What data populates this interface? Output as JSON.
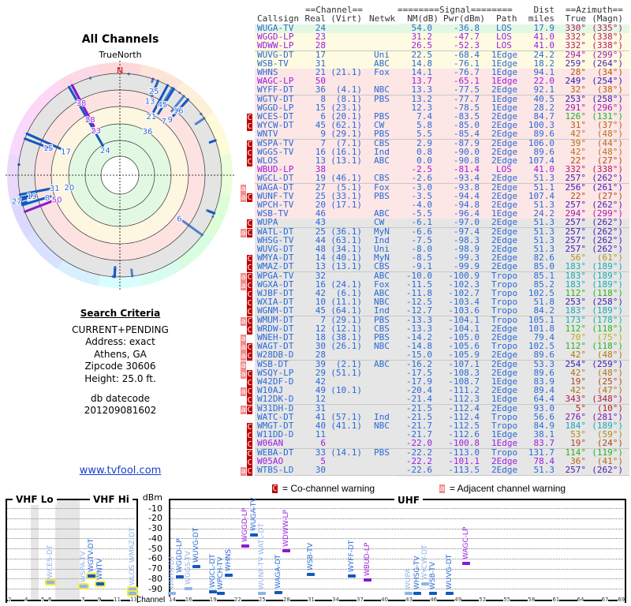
{
  "left": {
    "title": "All Channels",
    "true_north": "TrueNorth",
    "north_label": "N",
    "search_criteria": {
      "heading": "Search Criteria",
      "lines": [
        "CURRENT+PENDING",
        "Address: exact",
        "Athens, GA",
        "Zipcode 30606",
        "Height: 25.0 ft."
      ],
      "db_label": "db datecode",
      "db_value": "201209081602"
    },
    "link": "www.tvfool.com"
  },
  "table": {
    "group_headers": {
      "channel": "==Channel==",
      "signal": "========Signal========",
      "dist": "Dist",
      "azimuth": "==Azimuth=="
    },
    "headers": {
      "call": "Callsign",
      "real": "Real",
      "virt": "(Virt)",
      "net": "Netwk",
      "nm": "NM(dB)",
      "pwr": "Pwr(dBm)",
      "path": "Path",
      "dist": "miles",
      "az": "True",
      "magn": "(Magn)"
    },
    "band_colors": {
      "green": "#e2f8e2",
      "yellow": "#fffbe2",
      "pink": "#fde6e6",
      "gray": "#e6e6e6"
    },
    "text_colors": {
      "normal": "#2a6ad8",
      "lp": "#9a1ee0"
    },
    "rows": [
      {
        "f": "",
        "call": "WUGA-TV",
        "real": "24",
        "virt": "",
        "net": "",
        "nm": "54.0",
        "pwr": "-36.8",
        "path": "LOS",
        "dist": "17.9",
        "az": "330°",
        "magn": "(335°)",
        "band": "green"
      },
      {
        "f": "",
        "call": "WGGD-LP",
        "real": "23",
        "virt": "",
        "net": "",
        "nm": "31.2",
        "pwr": "-47.7",
        "path": "LOS",
        "dist": "41.0",
        "az": "332°",
        "magn": "(338°)",
        "band": "yellow",
        "lp": true
      },
      {
        "f": "",
        "call": "WDWW-LP",
        "real": "28",
        "virt": "",
        "net": "",
        "nm": "26.5",
        "pwr": "-52.3",
        "path": "LOS",
        "dist": "41.0",
        "az": "332°",
        "magn": "(338°)",
        "band": "yellow",
        "lp": true
      },
      {
        "f": "",
        "call": "WUVG-DT",
        "real": "17",
        "virt": "",
        "net": "Uni",
        "nm": "22.5",
        "pwr": "-68.4",
        "path": "1Edge",
        "dist": "24.2",
        "az": "294°",
        "magn": "(299°)",
        "band": "yellow"
      },
      {
        "f": "",
        "call": "WSB-TV",
        "real": "31",
        "virt": "",
        "net": "ABC",
        "nm": "14.8",
        "pwr": "-76.1",
        "path": "1Edge",
        "dist": "18.2",
        "az": "259°",
        "magn": "(264°)",
        "band": "yellow"
      },
      {
        "f": "",
        "call": "WHNS",
        "real": "21",
        "virt": "(21.1)",
        "net": "Fox",
        "nm": "14.1",
        "pwr": "-76.7",
        "path": "1Edge",
        "dist": "94.1",
        "az": "28°",
        "magn": "(34°)",
        "band": "pink"
      },
      {
        "f": "",
        "call": "WAGC-LP",
        "real": "50",
        "virt": "",
        "net": "",
        "nm": "13.7",
        "pwr": "-65.1",
        "path": "1Edge",
        "dist": "22.0",
        "az": "249°",
        "magn": "(254°)",
        "band": "pink",
        "lp": true
      },
      {
        "f": "",
        "call": "WYFF-DT",
        "real": "36",
        "virt": "(4.1)",
        "net": "NBC",
        "nm": "13.3",
        "pwr": "-77.5",
        "path": "2Edge",
        "dist": "92.1",
        "az": "32°",
        "magn": "(38°)",
        "band": "pink"
      },
      {
        "f": "",
        "call": "WGTV-DT",
        "real": "8",
        "virt": "(8.1)",
        "net": "PBS",
        "nm": "13.2",
        "pwr": "-77.7",
        "path": "1Edge",
        "dist": "40.5",
        "az": "253°",
        "magn": "(258°)",
        "band": "pink"
      },
      {
        "f": "",
        "call": "WGGD-LP",
        "real": "15",
        "virt": "(23.1)",
        "net": "",
        "nm": "12.3",
        "pwr": "-78.5",
        "path": "1Edge",
        "dist": "28.2",
        "az": "291°",
        "magn": "(296°)",
        "band": "pink"
      },
      {
        "f": "C",
        "call": "WCES-DT",
        "real": "6",
        "virt": "(20.1)",
        "net": "PBS",
        "nm": "7.4",
        "pwr": "-83.5",
        "path": "2Edge",
        "dist": "84.7",
        "az": "126°",
        "magn": "(131°)",
        "band": "pink"
      },
      {
        "f": "C",
        "call": "WYCW-DT",
        "real": "45",
        "virt": "(62.1)",
        "net": "CW",
        "nm": "5.8",
        "pwr": "-85.0",
        "path": "2Edge",
        "dist": "100.3",
        "az": "31°",
        "magn": "(37°)",
        "band": "pink"
      },
      {
        "f": "",
        "call": "WNTV",
        "real": "9",
        "virt": "(29.1)",
        "net": "PBS",
        "nm": "5.5",
        "pwr": "-85.4",
        "path": "2Edge",
        "dist": "89.6",
        "az": "42°",
        "magn": "(48°)",
        "band": "pink"
      },
      {
        "f": "C",
        "call": "WSPA-TV",
        "real": "7",
        "virt": "(7.1)",
        "net": "CBS",
        "nm": "2.9",
        "pwr": "-87.9",
        "path": "2Edge",
        "dist": "106.0",
        "az": "39°",
        "magn": "(44°)",
        "band": "pink"
      },
      {
        "f": "C",
        "call": "WGGS-TV",
        "real": "16",
        "virt": "(16.1)",
        "net": "Ind",
        "nm": "0.8",
        "pwr": "-90.0",
        "path": "2Edge",
        "dist": "89.6",
        "az": "42°",
        "magn": "(48°)",
        "band": "pink"
      },
      {
        "f": "C",
        "call": "WLOS",
        "real": "13",
        "virt": "(13.1)",
        "net": "ABC",
        "nm": "0.0",
        "pwr": "-90.8",
        "path": "2Edge",
        "dist": "107.4",
        "az": "22°",
        "magn": "(27°)",
        "band": "pink"
      },
      {
        "f": "",
        "call": "WBUD-LP",
        "real": "38",
        "virt": "",
        "net": "",
        "nm": "-2.5",
        "pwr": "-81.4",
        "path": "LOS",
        "dist": "41.0",
        "az": "332°",
        "magn": "(338°)",
        "band": "pink",
        "lp": true
      },
      {
        "f": "",
        "call": "WGCL-DT",
        "real": "19",
        "virt": "(46.1)",
        "net": "CBS",
        "nm": "-2.6",
        "pwr": "-93.4",
        "path": "2Edge",
        "dist": "51.3",
        "az": "257°",
        "magn": "(262°)",
        "band": "pink"
      },
      {
        "f": "a",
        "call": "WAGA-DT",
        "real": "27",
        "virt": "(5.1)",
        "net": "Fox",
        "nm": "-3.0",
        "pwr": "-93.8",
        "path": "2Edge",
        "dist": "51.1",
        "az": "256°",
        "magn": "(261°)",
        "band": "pink"
      },
      {
        "f": "aC",
        "call": "WUNF-TV",
        "real": "25",
        "virt": "(33.1)",
        "net": "PBS",
        "nm": "-3.5",
        "pwr": "-94.4",
        "path": "2Edge",
        "dist": "107.4",
        "az": "22°",
        "magn": "(27°)",
        "band": "pink"
      },
      {
        "f": "",
        "call": "WPCH-TV",
        "real": "20",
        "virt": "(17.1)",
        "net": "",
        "nm": "-4.0",
        "pwr": "-94.8",
        "path": "2Edge",
        "dist": "51.3",
        "az": "257°",
        "magn": "(262°)",
        "band": "pink"
      },
      {
        "f": "",
        "call": "WSB-TV",
        "real": "46",
        "virt": "",
        "net": "ABC",
        "nm": "-5.5",
        "pwr": "-96.4",
        "path": "1Edge",
        "dist": "24.2",
        "az": "294°",
        "magn": "(299°)",
        "band": "pink"
      },
      {
        "f": "C",
        "call": "WUPA",
        "real": "43",
        "virt": "",
        "net": "CW",
        "nm": "-6.1",
        "pwr": "-97.0",
        "path": "2Edge",
        "dist": "51.3",
        "az": "257°",
        "magn": "(262°)",
        "band": "gray"
      },
      {
        "f": "aC",
        "call": "WATL-DT",
        "real": "25",
        "virt": "(36.1)",
        "net": "MyN",
        "nm": "-6.6",
        "pwr": "-97.4",
        "path": "2Edge",
        "dist": "51.3",
        "az": "257°",
        "magn": "(262°)",
        "band": "gray"
      },
      {
        "f": "",
        "call": "WHSG-TV",
        "real": "44",
        "virt": "(63.1)",
        "net": "Ind",
        "nm": "-7.5",
        "pwr": "-98.3",
        "path": "2Edge",
        "dist": "51.3",
        "az": "257°",
        "magn": "(262°)",
        "band": "gray"
      },
      {
        "f": "",
        "call": "WUVG-DT",
        "real": "48",
        "virt": "(34.1)",
        "net": "Uni",
        "nm": "-8.0",
        "pwr": "-98.9",
        "path": "2Edge",
        "dist": "51.3",
        "az": "257°",
        "magn": "(262°)",
        "band": "gray"
      },
      {
        "f": "C",
        "call": "WMYA-DT",
        "real": "14",
        "virt": "(40.1)",
        "net": "MyN",
        "nm": "-8.5",
        "pwr": "-99.3",
        "path": "2Edge",
        "dist": "82.6",
        "az": "56°",
        "magn": "(61°)",
        "band": "gray"
      },
      {
        "f": "C",
        "call": "WMAZ-DT",
        "real": "13",
        "virt": "(13.1)",
        "net": "CBS",
        "nm": "-9.1",
        "pwr": "-99.9",
        "path": "2Edge",
        "dist": "85.0",
        "az": "183°",
        "magn": "(189°)",
        "band": "gray"
      },
      {
        "f": "aC",
        "call": "WPGA-TV",
        "real": "32",
        "virt": "",
        "net": "ABC",
        "nm": "-10.0",
        "pwr": "-100.9",
        "path": "Tropo",
        "dist": "85.1",
        "az": "183°",
        "magn": "(189°)",
        "band": "gray"
      },
      {
        "f": "aC",
        "call": "WGXA-DT",
        "real": "16",
        "virt": "(24.1)",
        "net": "Fox",
        "nm": "-11.5",
        "pwr": "-102.3",
        "path": "Tropo",
        "dist": "85.2",
        "az": "183°",
        "magn": "(189°)",
        "band": "gray"
      },
      {
        "f": "C",
        "call": "WJBF-DT",
        "real": "42",
        "virt": "(6.1)",
        "net": "ABC",
        "nm": "-11.8",
        "pwr": "-102.7",
        "path": "Tropo",
        "dist": "102.5",
        "az": "112°",
        "magn": "(118°)",
        "band": "gray"
      },
      {
        "f": "C",
        "call": "WXIA-DT",
        "real": "10",
        "virt": "(11.1)",
        "net": "NBC",
        "nm": "-12.5",
        "pwr": "-103.4",
        "path": "Tropo",
        "dist": "51.8",
        "az": "253°",
        "magn": "(258°)",
        "band": "gray"
      },
      {
        "f": "C",
        "call": "WGNM-DT",
        "real": "45",
        "virt": "(64.1)",
        "net": "Ind",
        "nm": "-12.7",
        "pwr": "-103.6",
        "path": "Tropo",
        "dist": "84.2",
        "az": "183°",
        "magn": "(189°)",
        "band": "gray"
      },
      {
        "f": "aC",
        "call": "WMUM-DT",
        "real": "7",
        "virt": "(29.1)",
        "net": "PBS",
        "nm": "-13.3",
        "pwr": "-104.1",
        "path": "Tropo",
        "dist": "105.1",
        "az": "173°",
        "magn": "(178°)",
        "band": "gray"
      },
      {
        "f": "C",
        "call": "WRDW-DT",
        "real": "12",
        "virt": "(12.1)",
        "net": "CBS",
        "nm": "-13.3",
        "pwr": "-104.1",
        "path": "2Edge",
        "dist": "101.8",
        "az": "112°",
        "magn": "(118°)",
        "band": "gray"
      },
      {
        "f": "a",
        "call": "WNEH-DT",
        "real": "18",
        "virt": "(38.1)",
        "net": "PBS",
        "nm": "-14.2",
        "pwr": "-105.0",
        "path": "2Edge",
        "dist": "79.4",
        "az": "70°",
        "magn": "(75°)",
        "band": "gray"
      },
      {
        "f": "aC",
        "call": "WAGT-DT",
        "real": "30",
        "virt": "(26.1)",
        "net": "NBC",
        "nm": "-14.8",
        "pwr": "-105.6",
        "path": "Tropo",
        "dist": "102.5",
        "az": "112°",
        "magn": "(118°)",
        "band": "gray"
      },
      {
        "f": "aC",
        "call": "W28DB-D",
        "real": "28",
        "virt": "",
        "net": "",
        "nm": "-15.0",
        "pwr": "-105.9",
        "path": "2Edge",
        "dist": "89.6",
        "az": "42°",
        "magn": "(48°)",
        "band": "gray"
      },
      {
        "f": "a",
        "call": "WSB-DT",
        "real": "39",
        "virt": "(2.1)",
        "net": "ABC",
        "nm": "-16.2",
        "pwr": "-107.1",
        "path": "2Edge",
        "dist": "53.3",
        "az": "254°",
        "magn": "(259°)",
        "band": "gray"
      },
      {
        "f": "aC",
        "call": "WSQY-LP",
        "real": "29",
        "virt": "(51.1)",
        "net": "",
        "nm": "-17.5",
        "pwr": "-108.3",
        "path": "2Edge",
        "dist": "89.6",
        "az": "42°",
        "magn": "(48°)",
        "band": "gray"
      },
      {
        "f": "C",
        "call": "W42DF-D",
        "real": "42",
        "virt": "",
        "net": "",
        "nm": "-17.9",
        "pwr": "-108.7",
        "path": "1Edge",
        "dist": "83.9",
        "az": "19°",
        "magn": "(25°)",
        "band": "gray"
      },
      {
        "f": "aC",
        "call": "W10AJ",
        "real": "49",
        "virt": "(10.1)",
        "net": "",
        "nm": "-20.4",
        "pwr": "-111.2",
        "path": "2Edge",
        "dist": "89.4",
        "az": "42°",
        "magn": "(47°)",
        "band": "gray"
      },
      {
        "f": "C",
        "call": "W12DK-D",
        "real": "12",
        "virt": "",
        "net": "",
        "nm": "-21.4",
        "pwr": "-112.3",
        "path": "1Edge",
        "dist": "64.4",
        "az": "343°",
        "magn": "(348°)",
        "band": "gray"
      },
      {
        "f": "aC",
        "call": "W31DH-D",
        "real": "31",
        "virt": "",
        "net": "",
        "nm": "-21.5",
        "pwr": "-112.4",
        "path": "2Edge",
        "dist": "93.0",
        "az": "5°",
        "magn": "(10°)",
        "band": "gray"
      },
      {
        "f": "",
        "call": "WATC-DT",
        "real": "41",
        "virt": "(57.1)",
        "net": "Ind",
        "nm": "-21.5",
        "pwr": "-112.4",
        "path": "Tropo",
        "dist": "56.6",
        "az": "276°",
        "magn": "(281°)",
        "band": "gray"
      },
      {
        "f": "C",
        "call": "WMGT-DT",
        "real": "40",
        "virt": "(41.1)",
        "net": "NBC",
        "nm": "-21.7",
        "pwr": "-112.5",
        "path": "Tropo",
        "dist": "84.9",
        "az": "184°",
        "magn": "(189°)",
        "band": "gray"
      },
      {
        "f": "C",
        "call": "W11DD-D",
        "real": "11",
        "virt": "",
        "net": "",
        "nm": "-21.7",
        "pwr": "-112.6",
        "path": "1Edge",
        "dist": "38.1",
        "az": "53°",
        "magn": "(59°)",
        "band": "gray"
      },
      {
        "f": "C",
        "call": "W06AN",
        "real": "6",
        "virt": "",
        "net": "",
        "nm": "-22.0",
        "pwr": "-100.8",
        "path": "1Edge",
        "dist": "83.7",
        "az": "19°",
        "magn": "(24°)",
        "band": "gray",
        "lp": true
      },
      {
        "f": "C",
        "call": "WEBA-DT",
        "real": "33",
        "virt": "(14.1)",
        "net": "PBS",
        "nm": "-22.2",
        "pwr": "-113.0",
        "path": "Tropo",
        "dist": "131.7",
        "az": "114°",
        "magn": "(119°)",
        "band": "gray"
      },
      {
        "f": "C",
        "call": "W05AO",
        "real": "5",
        "virt": "",
        "net": "",
        "nm": "-22.2",
        "pwr": "-101.1",
        "path": "2Edge",
        "dist": "78.4",
        "az": "36°",
        "magn": "(41°)",
        "band": "gray",
        "lp": true
      },
      {
        "f": "aC",
        "call": "WTBS-LD",
        "real": "30",
        "virt": "",
        "net": "",
        "nm": "-22.6",
        "pwr": "-113.5",
        "path": "2Edge",
        "dist": "51.3",
        "az": "257°",
        "magn": "(262°)",
        "band": "gray"
      }
    ]
  },
  "legend": {
    "co_badge": "C",
    "co_text": "= Co-channel warning",
    "adj_badge": "a",
    "adj_text": "= Adjacent channel warning",
    "co_color": "#c00000",
    "adj_color": "#f08c8c"
  },
  "spectrum": {
    "vhf_lo": "VHF Lo",
    "vhf_hi": "VHF Hi",
    "uhf": "UHF",
    "unit": "dBm",
    "channel_label": "Channel",
    "db_ticks": [
      "-10",
      "-20",
      "-30",
      "-40",
      "-50",
      "-60",
      "-70",
      "-80",
      "-90"
    ],
    "vhf_ticks": [
      "2",
      "4",
      "5",
      "6",
      "7",
      "9",
      "11",
      "13"
    ],
    "uhf_ticks": [
      "14",
      "16",
      "19",
      "22",
      "25",
      "28",
      "31",
      "34",
      "37",
      "40",
      "43",
      "46",
      "49",
      "52",
      "55",
      "58",
      "61",
      "64",
      "67",
      "69"
    ],
    "min_plotted_dbm": -100
  }
}
